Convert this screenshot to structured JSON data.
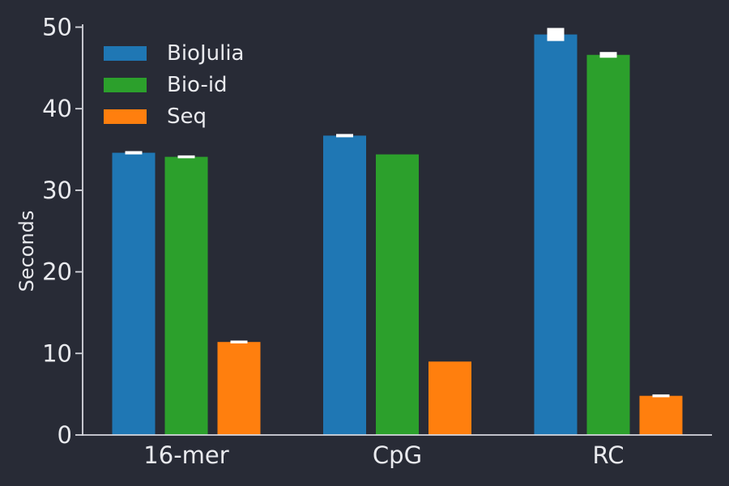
{
  "chart_data": {
    "type": "bar",
    "title": "",
    "xlabel": "",
    "ylabel": "Seconds",
    "categories": [
      "16-mer",
      "CpG",
      "RC"
    ],
    "series": [
      {
        "name": "BioJulia",
        "color": "#1f77b4",
        "values": [
          34.6,
          36.7,
          49.1
        ],
        "errors": [
          0.2,
          0.2,
          0.8
        ]
      },
      {
        "name": "Bio-id",
        "color": "#2ca02c",
        "values": [
          34.1,
          34.4,
          46.6
        ],
        "errors": [
          0.15,
          0,
          0.35
        ]
      },
      {
        "name": "Seq",
        "color": "#ff7f0e",
        "values": [
          11.4,
          9.0,
          4.8
        ],
        "errors": [
          0.15,
          0,
          0.15
        ]
      }
    ],
    "ylim": [
      0,
      50
    ],
    "yticks": [
      "0",
      "10",
      "20",
      "30",
      "40",
      "50"
    ],
    "grid": false,
    "legend_position": "upper-left",
    "error_bar_color": "#ffffff"
  },
  "colors": {
    "background": "#282b36",
    "text": "#e9eaee",
    "axis": "#d7d9e0"
  }
}
